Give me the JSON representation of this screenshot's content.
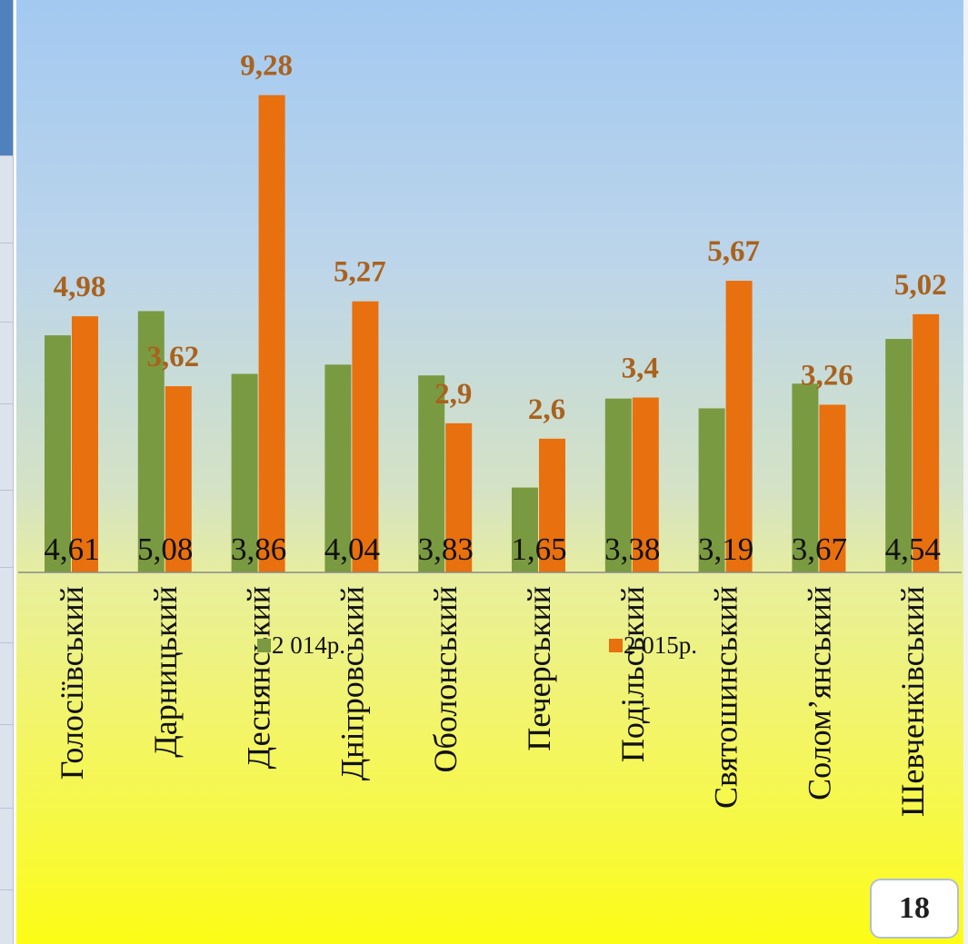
{
  "page": {
    "number": "18"
  },
  "chart_data": {
    "type": "bar",
    "title": "",
    "xlabel": "",
    "ylabel": "",
    "ylim": [
      0,
      10.6
    ],
    "grid": false,
    "legend_position": "bottom",
    "categories": [
      "Голосіївський",
      "Дарницький",
      "Деснянський",
      "Дніпровський",
      "Оболонський",
      "Печерський",
      "Подільський",
      "Святошинський",
      "Солом’янський",
      "Шевченківський"
    ],
    "series": [
      {
        "name": "2 014р.",
        "color": "#7a9a41",
        "labels": [
          "4,61",
          "5,08",
          "3,86",
          "4,04",
          "3,83",
          "1,65",
          "3,38",
          "3,19",
          "3,67",
          "4,54"
        ],
        "values": [
          4.61,
          5.08,
          3.86,
          4.04,
          3.83,
          1.65,
          3.38,
          3.19,
          3.67,
          4.54
        ]
      },
      {
        "name": "2 015р.",
        "color": "#e8700e",
        "labels": [
          "4,98",
          "3,62",
          "9,28",
          "5,27",
          "2,9",
          "2,6",
          "3,4",
          "5,67",
          "3,26",
          "5,02"
        ],
        "values": [
          4.98,
          3.62,
          9.28,
          5.27,
          2.9,
          2.6,
          3.4,
          5.67,
          3.26,
          5.02
        ]
      }
    ]
  }
}
